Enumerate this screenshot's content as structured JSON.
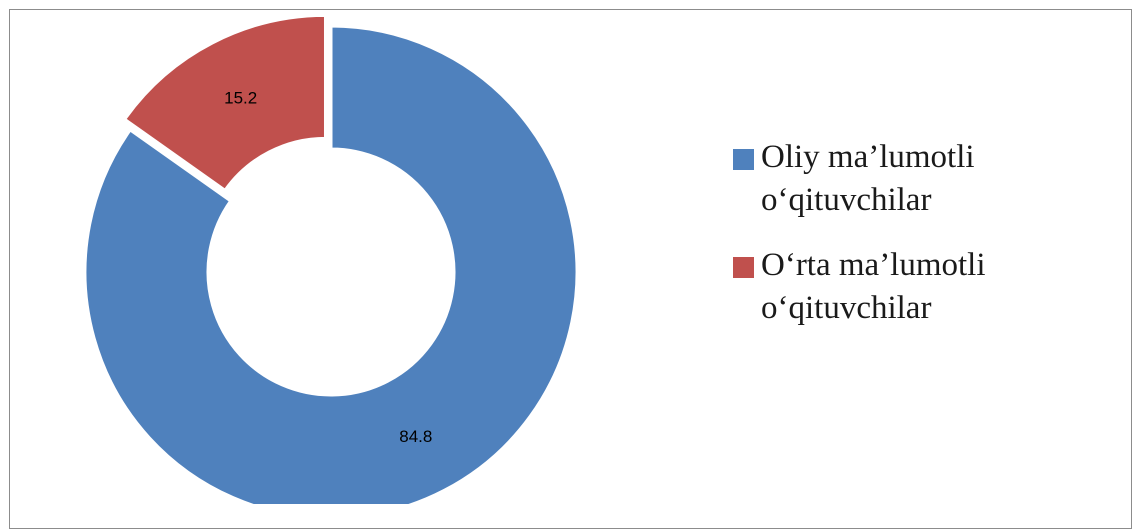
{
  "chart_data": {
    "type": "pie",
    "variant": "donut",
    "title": "",
    "categories": [
      "Oliy ma’lumotli o‘qituvchilar",
      "O‘rta ma’lumotli o‘qituvchilar"
    ],
    "series": [
      {
        "values": [
          84.8,
          15.2
        ]
      }
    ],
    "data_labels": [
      "84.8",
      "15.2"
    ],
    "colors": [
      "#4f81bd",
      "#c0504d"
    ],
    "exploded_slice": "O‘rta ma’lumotli o‘qituvchilar",
    "legend_position": "right"
  },
  "legend": {
    "items": [
      {
        "line1": "Oliy ma’lumotli",
        "line2": "o‘qituvchilar",
        "color": "#4f81bd"
      },
      {
        "line1": "O‘rta ma’lumotli",
        "line2": "o‘qituvchilar",
        "color": "#c0504d"
      }
    ]
  }
}
